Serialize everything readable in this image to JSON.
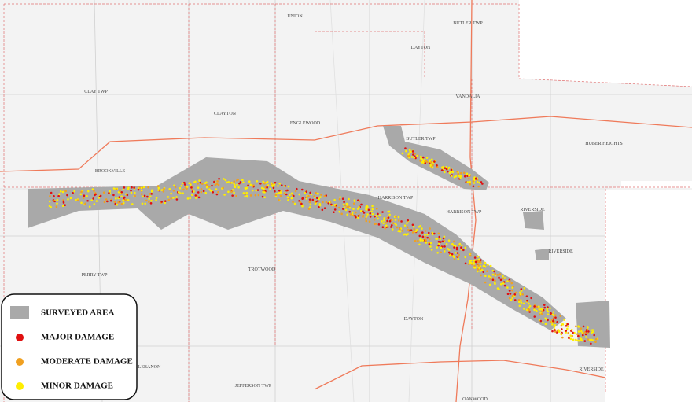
{
  "places": [
    "UNION",
    "BUTLER TWP",
    "DAYTON",
    "CLAY TWP",
    "VANDALIA",
    "CLAYTON",
    "ENGLEWOOD",
    "BUTLER TWP",
    "HUBER HEIGHTS",
    "BROOKVILLE",
    "HARRISON TWP",
    "HARRISON TWP",
    "RIVERSIDE",
    "RIVERSIDE",
    "TROTWOOD",
    "PERRY TWP",
    "DAYTON",
    "LEBANON",
    "JEFFERSON TWP",
    "RIVERSIDE",
    "OAKWOOD"
  ],
  "legend": [
    "SURVEYED AREA",
    "MAJOR DAMAGE",
    "MODERATE DAMAGE",
    "MINOR DAMAGE"
  ]
}
